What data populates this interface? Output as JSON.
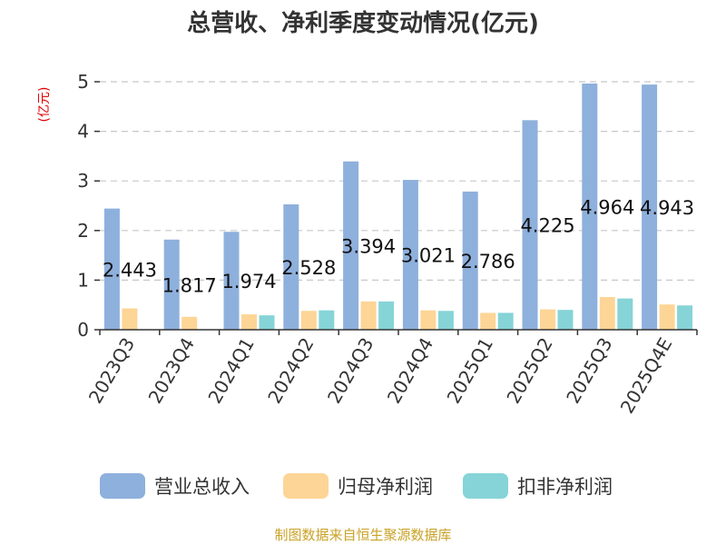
{
  "chart_data": {
    "type": "bar",
    "title": "总营收、净利季度变动情况(亿元)",
    "unit_label": "(亿元)",
    "categories": [
      "2023Q3",
      "2023Q4",
      "2024Q1",
      "2024Q2",
      "2024Q3",
      "2024Q4",
      "2025Q1",
      "2025Q2",
      "2025Q3",
      "2025Q4E"
    ],
    "series": [
      {
        "name": "营业总收入",
        "color": "#8eb0dc",
        "values": [
          2.443,
          1.817,
          1.974,
          2.528,
          3.394,
          3.021,
          2.786,
          4.225,
          4.964,
          4.943
        ],
        "data_labels": [
          "2.443",
          "1.817",
          "1.974",
          "2.528",
          "3.394",
          "3.021",
          "2.786",
          "4.225",
          "4.964",
          "4.943"
        ]
      },
      {
        "name": "归母净利润",
        "color": "#fdd596",
        "values": [
          0.43,
          0.26,
          0.31,
          0.38,
          0.57,
          0.39,
          0.34,
          0.41,
          0.66,
          0.51
        ]
      },
      {
        "name": "扣非净利润",
        "color": "#86d4d7",
        "values": [
          null,
          null,
          0.29,
          0.39,
          0.57,
          0.38,
          0.34,
          0.4,
          0.63,
          0.49
        ]
      }
    ],
    "ylim": [
      0,
      5
    ],
    "yticks": [
      "0",
      "1",
      "2",
      "3",
      "4",
      "5"
    ],
    "grid": true,
    "legend_position": "bottom"
  },
  "source": "制图数据来自恒生聚源数据库"
}
